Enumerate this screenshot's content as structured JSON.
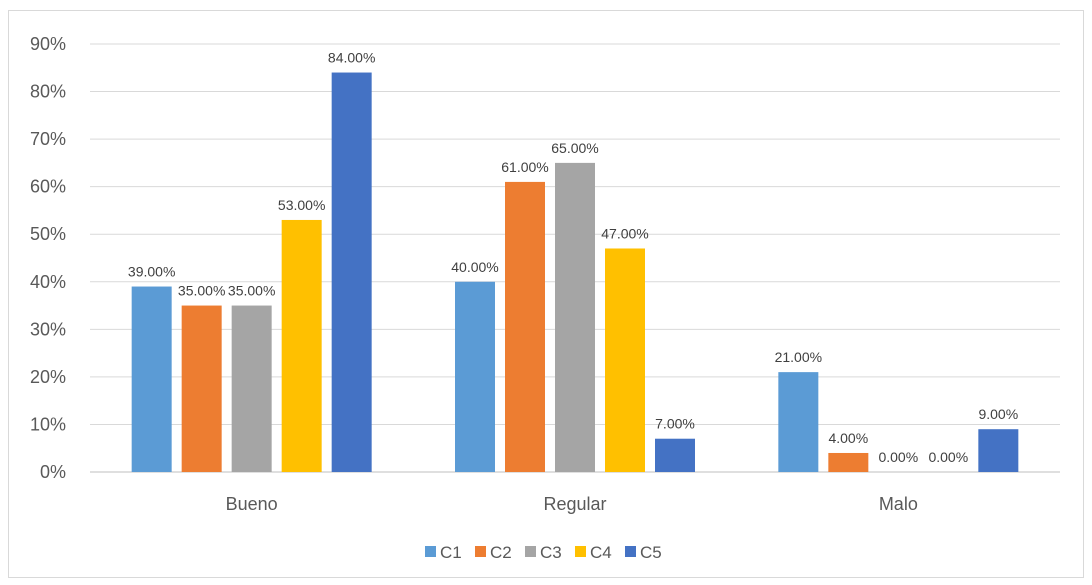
{
  "chart_data": {
    "type": "bar",
    "categories": [
      "Bueno",
      "Regular",
      "Malo"
    ],
    "series": [
      {
        "name": "C1",
        "color": "#5B9BD5",
        "values": [
          39,
          40,
          21
        ],
        "labels": [
          "39.00%",
          "40.00%",
          "21.00%"
        ]
      },
      {
        "name": "C2",
        "color": "#ED7D31",
        "values": [
          35,
          61,
          4
        ],
        "labels": [
          "35.00%",
          "61.00%",
          "4.00%"
        ]
      },
      {
        "name": "C3",
        "color": "#A5A5A5",
        "values": [
          35,
          65,
          0
        ],
        "labels": [
          "35.00%",
          "65.00%",
          "0.00%"
        ]
      },
      {
        "name": "C4",
        "color": "#FFC000",
        "values": [
          53,
          47,
          0
        ],
        "labels": [
          "53.00%",
          "47.00%",
          "0.00%"
        ]
      },
      {
        "name": "C5",
        "color": "#4472C4",
        "values": [
          84,
          7,
          9
        ],
        "labels": [
          "84.00%",
          "7.00%",
          "9.00%"
        ]
      }
    ],
    "y_ticks": [
      "0%",
      "10%",
      "20%",
      "30%",
      "40%",
      "50%",
      "60%",
      "70%",
      "80%",
      "90%"
    ],
    "ylim": [
      0,
      90
    ],
    "grid": true,
    "legend": "bottom"
  }
}
